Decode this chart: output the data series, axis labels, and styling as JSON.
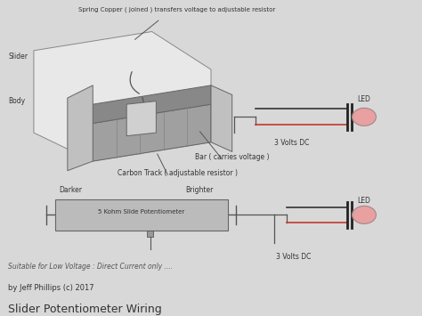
{
  "title": "Slider Potentiometer Wiring",
  "subtitle": "by Jeff Phillips (c) 2017",
  "subtitle2": "Suitable for Low Voltage : Direct Current only ....",
  "bg_color": "#d8d8d8",
  "text_color": "#333333",
  "line_color": "#555555",
  "red_color": "#c0392b",
  "dark_color": "#444444",
  "pot_label": "5 Kohm Slide Potentiometer",
  "darker_label": "Darker",
  "brighter_label": "Brighter",
  "led_label": "LED",
  "volts_label": "3 Volts DC",
  "carbon_track_label": "Carbon Track ( adjustable resistor )",
  "bar_label": "Bar ( carries voltage )",
  "body_label": "Body",
  "slider_label": "Slider",
  "spring_label": "Spring Copper ( joined ) transfers voltage to adjustable resistor",
  "led_label2": "LED",
  "volts_label2": "3 Volts DC",
  "fig_w": 4.74,
  "fig_h": 3.55,
  "dpi": 100
}
